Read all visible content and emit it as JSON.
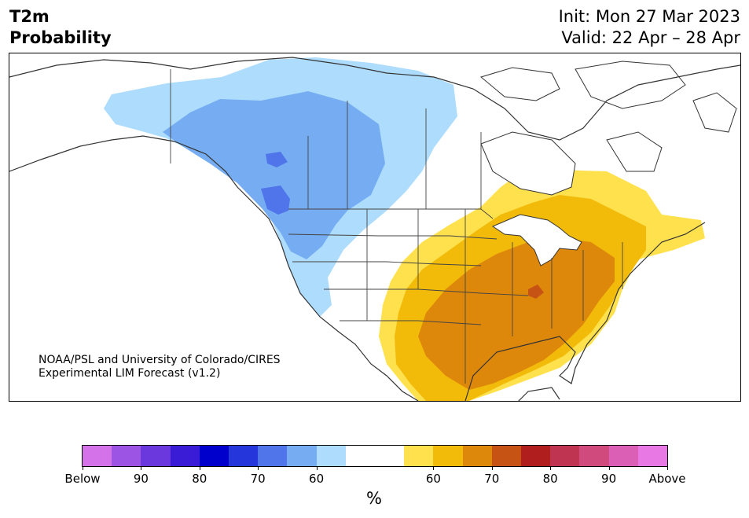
{
  "header": {
    "title_line1": "T2m",
    "title_line2": "Probability",
    "init_label": "Init: Mon 27 Mar 2023",
    "valid_label": "Valid: 22 Apr – 28 Apr"
  },
  "map": {
    "credit_line1": "NOAA/PSL and University of Colorado/CIRES",
    "credit_line2": "Experimental LIM Forecast (v1.2)"
  },
  "colorbar": {
    "colors": [
      "#d472ea",
      "#9c54e4",
      "#6a38dc",
      "#3a1bd6",
      "#0000cc",
      "#2537da",
      "#5075ea",
      "#76adf2",
      "#addcfd",
      "#ffffff",
      "#ffffff",
      "#ffe14d",
      "#f2bb0a",
      "#de880b",
      "#c65213",
      "#b01f1e",
      "#bf3450",
      "#d04a7e",
      "#db60b5",
      "#e878e4"
    ],
    "tick_labels": [
      "Below",
      "90",
      "80",
      "70",
      "60",
      "60",
      "70",
      "80",
      "90",
      "Above"
    ],
    "units": "%"
  },
  "legend_colors": {
    "light_blue": "#addcfd",
    "mid_blue": "#76adf2",
    "dark_blue": "#5075ea",
    "yellow": "#ffe14d",
    "gold": "#f2bb0a",
    "orange": "#de880b",
    "dark_orange": "#c65213"
  }
}
